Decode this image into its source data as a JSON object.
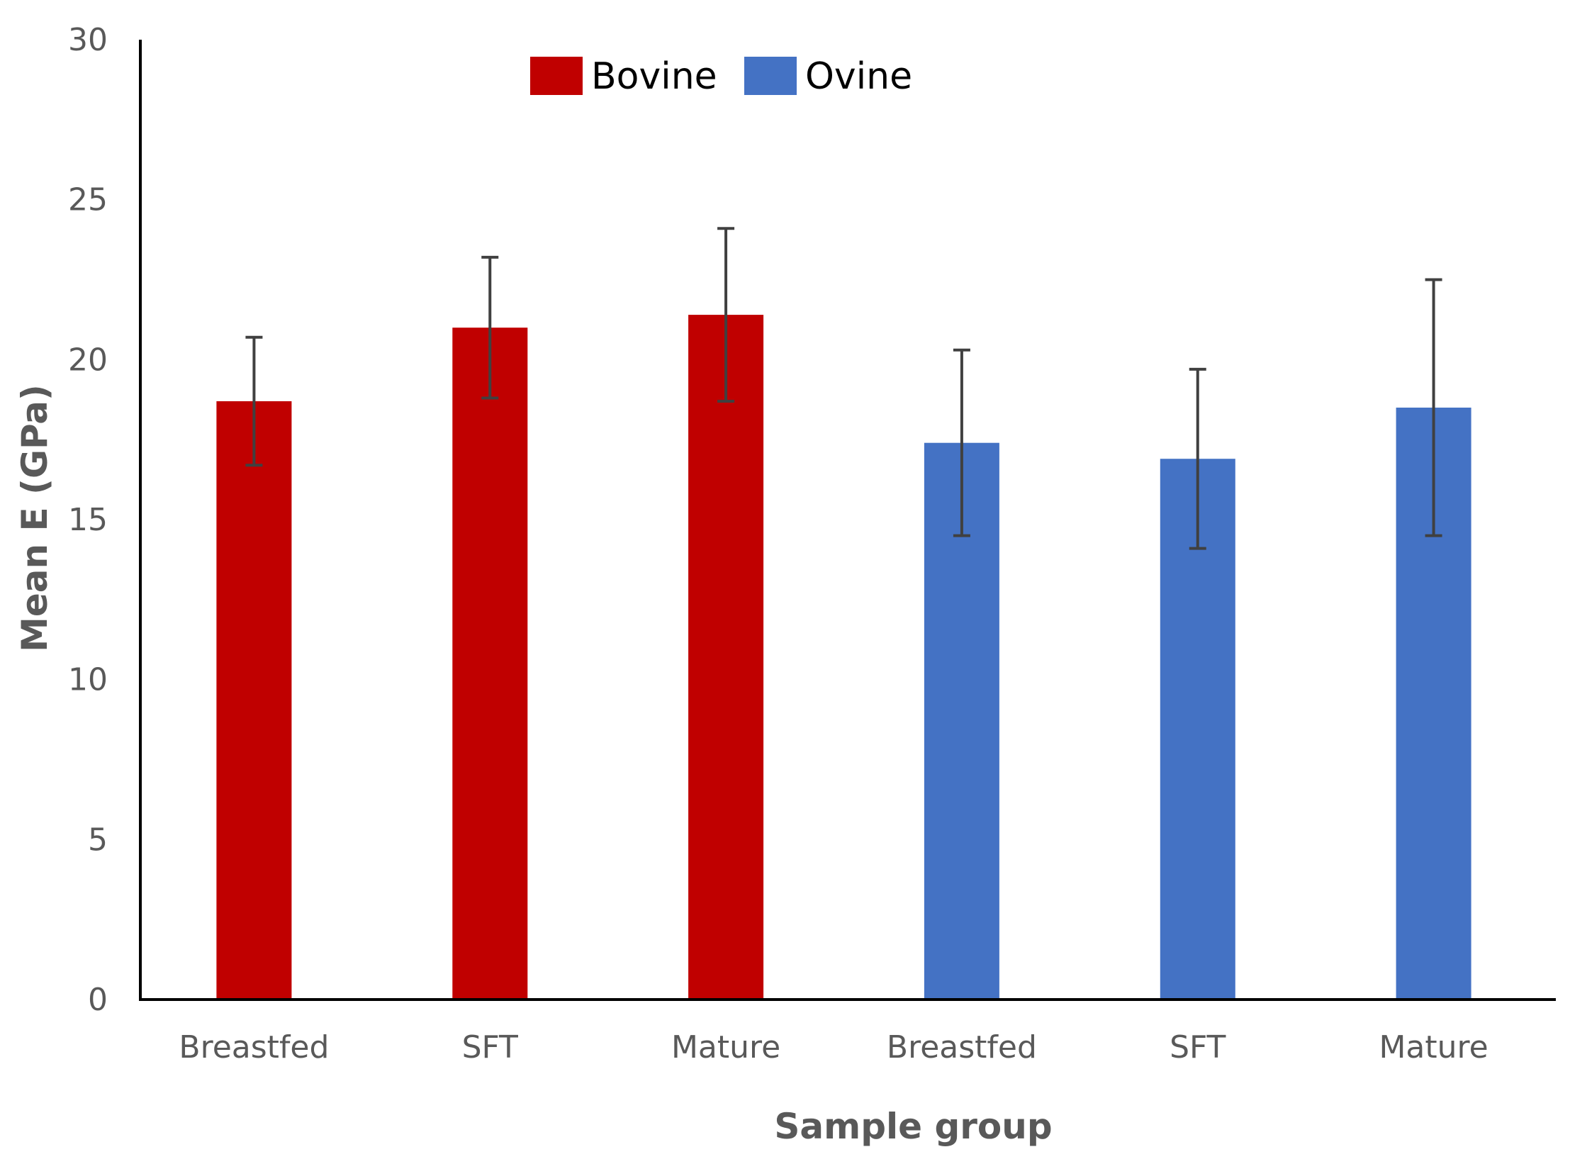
{
  "chart_data": {
    "type": "bar",
    "xlabel": "Sample group",
    "ylabel": "Mean E (GPa)",
    "ylim": [
      0,
      30
    ],
    "yticks": [
      0,
      5,
      10,
      15,
      20,
      25,
      30
    ],
    "grid": false,
    "legend_position": "top-center",
    "series": [
      {
        "name": "Bovine",
        "color": "#c00000",
        "categories": [
          "Breastfed",
          "SFT",
          "Mature"
        ],
        "values": [
          18.7,
          21.0,
          21.4
        ],
        "error": [
          2.0,
          2.2,
          2.7
        ]
      },
      {
        "name": "Ovine",
        "color": "#4472c4",
        "categories": [
          "Breastfed",
          "SFT",
          "Mature"
        ],
        "values": [
          17.4,
          16.9,
          18.5
        ],
        "error": [
          2.9,
          2.8,
          4.0
        ]
      }
    ]
  }
}
